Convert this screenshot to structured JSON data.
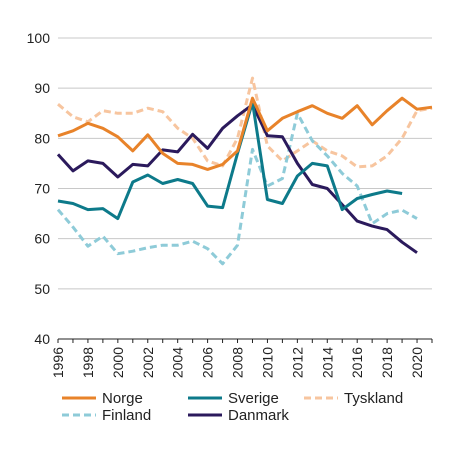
{
  "chart_data": {
    "type": "line",
    "title": "",
    "xlabel": "",
    "ylabel": "",
    "xlim": [
      1996,
      2021
    ],
    "ylim": [
      40,
      100
    ],
    "yticks": [
      "40",
      "50",
      "60",
      "70",
      "80",
      "90",
      "100"
    ],
    "xticks": [
      "1996",
      "1998",
      "2000",
      "2002",
      "2004",
      "2006",
      "2008",
      "2010",
      "2012",
      "2014",
      "2016",
      "2018",
      "2020"
    ],
    "grid": "horizontal",
    "legend_position": "bottom",
    "x": [
      1996,
      1997,
      1998,
      1999,
      2000,
      2001,
      2002,
      2003,
      2004,
      2005,
      2006,
      2007,
      2008,
      2009,
      2010,
      2011,
      2012,
      2013,
      2014,
      2015,
      2016,
      2017,
      2018,
      2019,
      2020,
      2021
    ],
    "series": [
      {
        "name": "Norge",
        "color": "#e8832a",
        "dash": "solid",
        "values": [
          80.5,
          81.5,
          83.0,
          82.0,
          80.3,
          77.5,
          80.7,
          77.0,
          75.0,
          74.8,
          73.8,
          74.8,
          77.5,
          88.0,
          81.5,
          84.0,
          85.3,
          86.5,
          85.0,
          84.0,
          86.5,
          82.7,
          85.5,
          88.0,
          85.8,
          86.2
        ]
      },
      {
        "name": "Sverige",
        "color": "#0d7a8a",
        "dash": "solid",
        "values": [
          67.5,
          67.0,
          65.8,
          66.0,
          64.0,
          71.3,
          72.7,
          71.0,
          71.8,
          71.0,
          66.5,
          66.2,
          77.0,
          87.2,
          67.8,
          67.0,
          72.5,
          75.0,
          74.5,
          65.8,
          68.0,
          68.8,
          69.5,
          69.0,
          null,
          null
        ]
      },
      {
        "name": "Tyskland",
        "color": "#f7c59f",
        "dash": "dashed",
        "values": [
          86.8,
          84.3,
          83.3,
          85.5,
          85.0,
          85.0,
          86.0,
          85.3,
          82.0,
          80.0,
          75.5,
          74.5,
          80.0,
          92.0,
          78.5,
          75.5,
          77.5,
          79.5,
          77.5,
          76.5,
          74.3,
          74.5,
          76.5,
          80.0,
          85.5,
          86.0
        ]
      },
      {
        "name": "Finland",
        "color": "#8ecbd8",
        "dash": "dashed",
        "values": [
          65.8,
          62.3,
          58.5,
          60.5,
          57.0,
          57.5,
          58.2,
          58.7,
          58.7,
          59.5,
          58.0,
          55.0,
          58.7,
          77.8,
          70.5,
          72.0,
          85.0,
          79.5,
          76.5,
          73.0,
          70.5,
          63.0,
          65.0,
          65.7,
          64.0,
          null
        ]
      },
      {
        "name": "Danmark",
        "color": "#2b1a5c",
        "dash": "solid",
        "values": [
          76.8,
          73.5,
          75.5,
          75.0,
          72.3,
          74.8,
          74.5,
          77.7,
          77.3,
          80.8,
          78.0,
          82.0,
          84.5,
          86.7,
          80.5,
          80.3,
          75.0,
          70.8,
          70.0,
          66.8,
          63.5,
          62.5,
          61.8,
          59.3,
          57.2,
          null
        ]
      }
    ]
  }
}
